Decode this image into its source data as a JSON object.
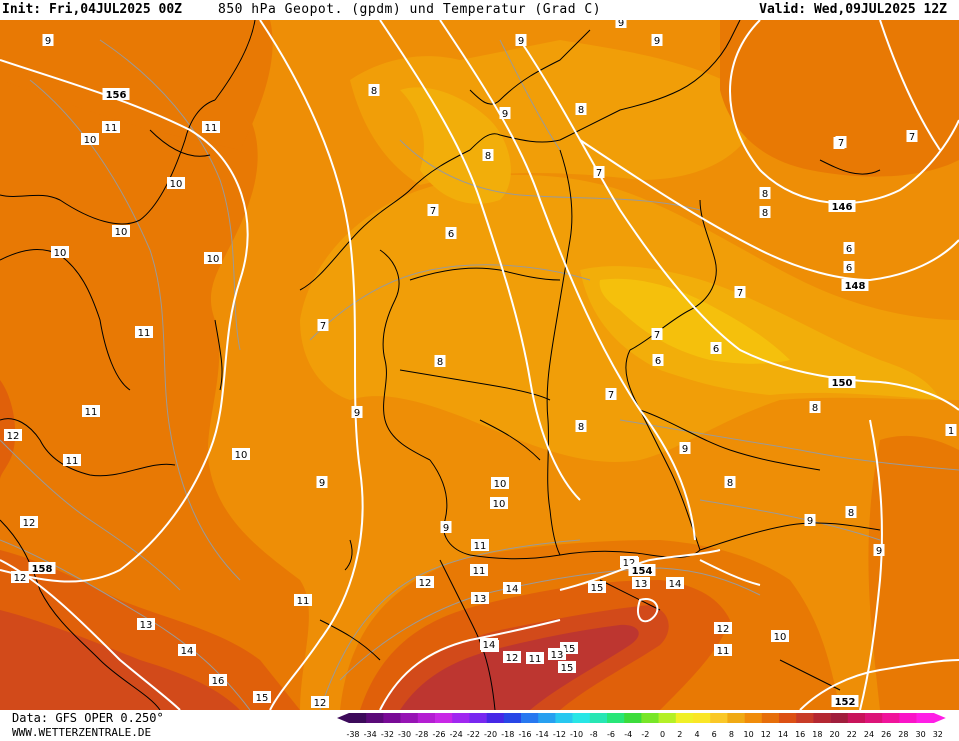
{
  "header": {
    "init": "Init: Fri,04JUL2025 00Z",
    "title": "850 hPa Geopot. (gpdm) und Temperatur (Grad C)",
    "valid": "Valid: Wed,09JUL2025 12Z"
  },
  "footer": {
    "data_source": "Data: GFS OPER 0.250°",
    "site": "WWW.WETTERZENTRALE.DE"
  },
  "legend": {
    "ticks": [
      "-38",
      "-34",
      "-32",
      "-30",
      "-28",
      "-26",
      "-24",
      "-22",
      "-20",
      "-18",
      "-16",
      "-14",
      "-12",
      "-10",
      "-8",
      "-6",
      "-4",
      "-2",
      "0",
      "2",
      "4",
      "6",
      "8",
      "10",
      "12",
      "14",
      "16",
      "18",
      "20",
      "22",
      "24",
      "26",
      "28",
      "30",
      "32"
    ],
    "colors": [
      "#3c0a5a",
      "#5a0a78",
      "#780a96",
      "#9614b4",
      "#b41ed2",
      "#c828e6",
      "#a028f0",
      "#7828f0",
      "#4628e6",
      "#2846e6",
      "#2878f0",
      "#28a0f0",
      "#28c8f0",
      "#28e6e6",
      "#28e6b4",
      "#28e678",
      "#3cdc3c",
      "#78e628",
      "#b4f028",
      "#f0f028",
      "#fae628",
      "#fac828",
      "#f0aa14",
      "#f08c0a",
      "#e66e0a",
      "#dc5014",
      "#c83c28",
      "#b42832",
      "#a01e3c",
      "#c8145a",
      "#dc1478",
      "#f0149b",
      "#fa14c8",
      "#ff1ee6"
    ]
  },
  "map_colors": {
    "temp_5_6": "#f5c00c",
    "temp_6_7": "#f2ae0a",
    "temp_7_8": "#f19e08",
    "temp_8_10": "#ee8e06",
    "temp_10_12": "#e87904",
    "temp_12_14": "#e0600a",
    "temp_14_16": "#d24a1a",
    "temp_16_18": "#bd3630",
    "border": "#000000",
    "geopot_line": "#ffffff",
    "temp_isoline": "#9a9a9a"
  },
  "geopotential_labels": [
    "156",
    "146",
    "148",
    "150",
    "154",
    "158",
    "152"
  ],
  "temperature_labels": [
    {
      "v": "9"
    },
    {
      "v": "10"
    },
    {
      "v": "11"
    },
    {
      "v": "10"
    },
    {
      "v": "11"
    },
    {
      "v": "10"
    },
    {
      "v": "10"
    },
    {
      "v": "10"
    },
    {
      "v": "11"
    },
    {
      "v": "11"
    },
    {
      "v": "12"
    },
    {
      "v": "11"
    },
    {
      "v": "12"
    },
    {
      "v": "10"
    },
    {
      "v": "9"
    },
    {
      "v": "13"
    },
    {
      "v": "14"
    },
    {
      "v": "16"
    },
    {
      "v": "15"
    },
    {
      "v": "12"
    },
    {
      "v": "11"
    },
    {
      "v": "12"
    },
    {
      "v": "8"
    },
    {
      "v": "7"
    },
    {
      "v": "6"
    },
    {
      "v": "7"
    },
    {
      "v": "9"
    },
    {
      "v": "8"
    },
    {
      "v": "8"
    },
    {
      "v": "9"
    },
    {
      "v": "9"
    },
    {
      "v": "7"
    },
    {
      "v": "7"
    },
    {
      "v": "6"
    },
    {
      "v": "7"
    },
    {
      "v": "6"
    },
    {
      "v": "6"
    },
    {
      "v": "8"
    },
    {
      "v": "7"
    },
    {
      "v": "8"
    },
    {
      "v": "9"
    },
    {
      "v": "10"
    },
    {
      "v": "9"
    },
    {
      "v": "11"
    },
    {
      "v": "12"
    },
    {
      "v": "11"
    },
    {
      "v": "13"
    },
    {
      "v": "14"
    },
    {
      "v": "15"
    },
    {
      "v": "14"
    },
    {
      "v": "12"
    },
    {
      "v": "11"
    },
    {
      "v": "15"
    },
    {
      "v": "13"
    },
    {
      "v": "15"
    },
    {
      "v": "14"
    },
    {
      "v": "12"
    },
    {
      "v": "11"
    },
    {
      "v": "10"
    },
    {
      "v": "8"
    },
    {
      "v": "9"
    },
    {
      "v": "7"
    },
    {
      "v": "7"
    },
    {
      "v": "8"
    },
    {
      "v": "6"
    },
    {
      "v": "7"
    },
    {
      "v": "8"
    },
    {
      "v": "9"
    },
    {
      "v": "9"
    },
    {
      "v": "8"
    },
    {
      "v": "8"
    },
    {
      "v": "9"
    },
    {
      "v": "10"
    },
    {
      "v": "12"
    },
    {
      "v": "13"
    },
    {
      "v": "14"
    },
    {
      "v": "13"
    },
    {
      "v": "12"
    },
    {
      "v": "1"
    }
  ]
}
